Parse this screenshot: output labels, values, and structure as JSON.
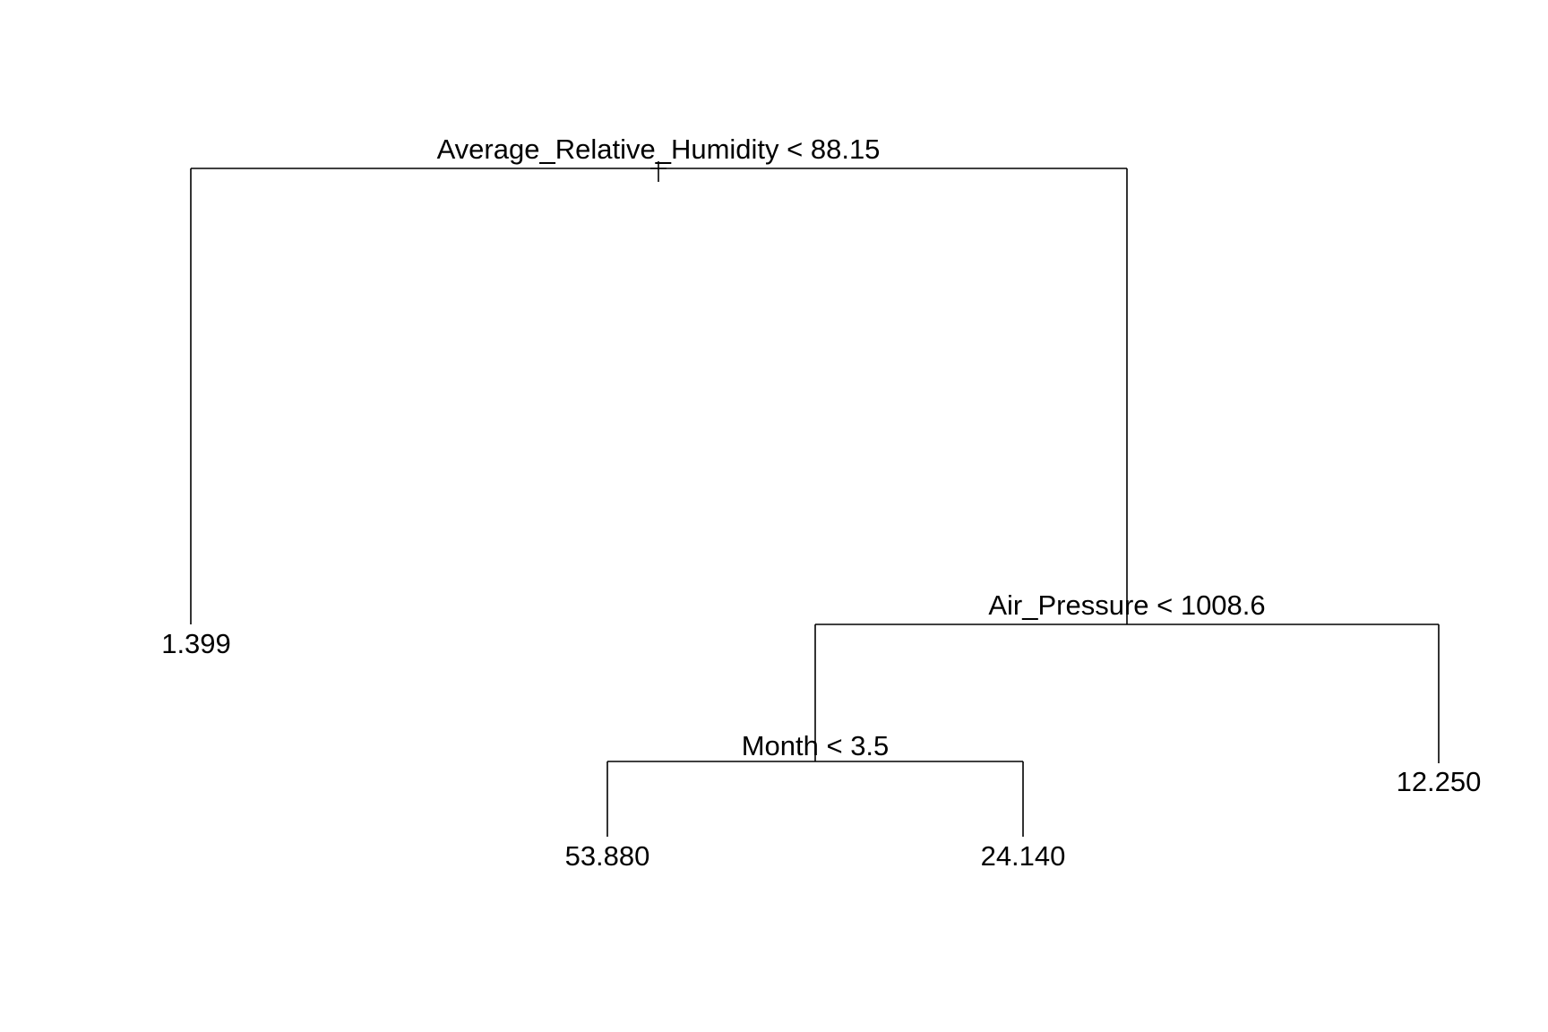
{
  "tree": {
    "root_split": "Average_Relative_Humidity < 88.15",
    "root_left_leaf": "1.399",
    "right_split": "Air_Pressure < 1008.6",
    "right_right_leaf": "12.250",
    "month_split": "Month < 3.5",
    "month_left_leaf": "53.880",
    "month_right_leaf": "24.140"
  },
  "colors": {
    "line": "#000000",
    "text": "#000000",
    "background": "#ffffff"
  }
}
